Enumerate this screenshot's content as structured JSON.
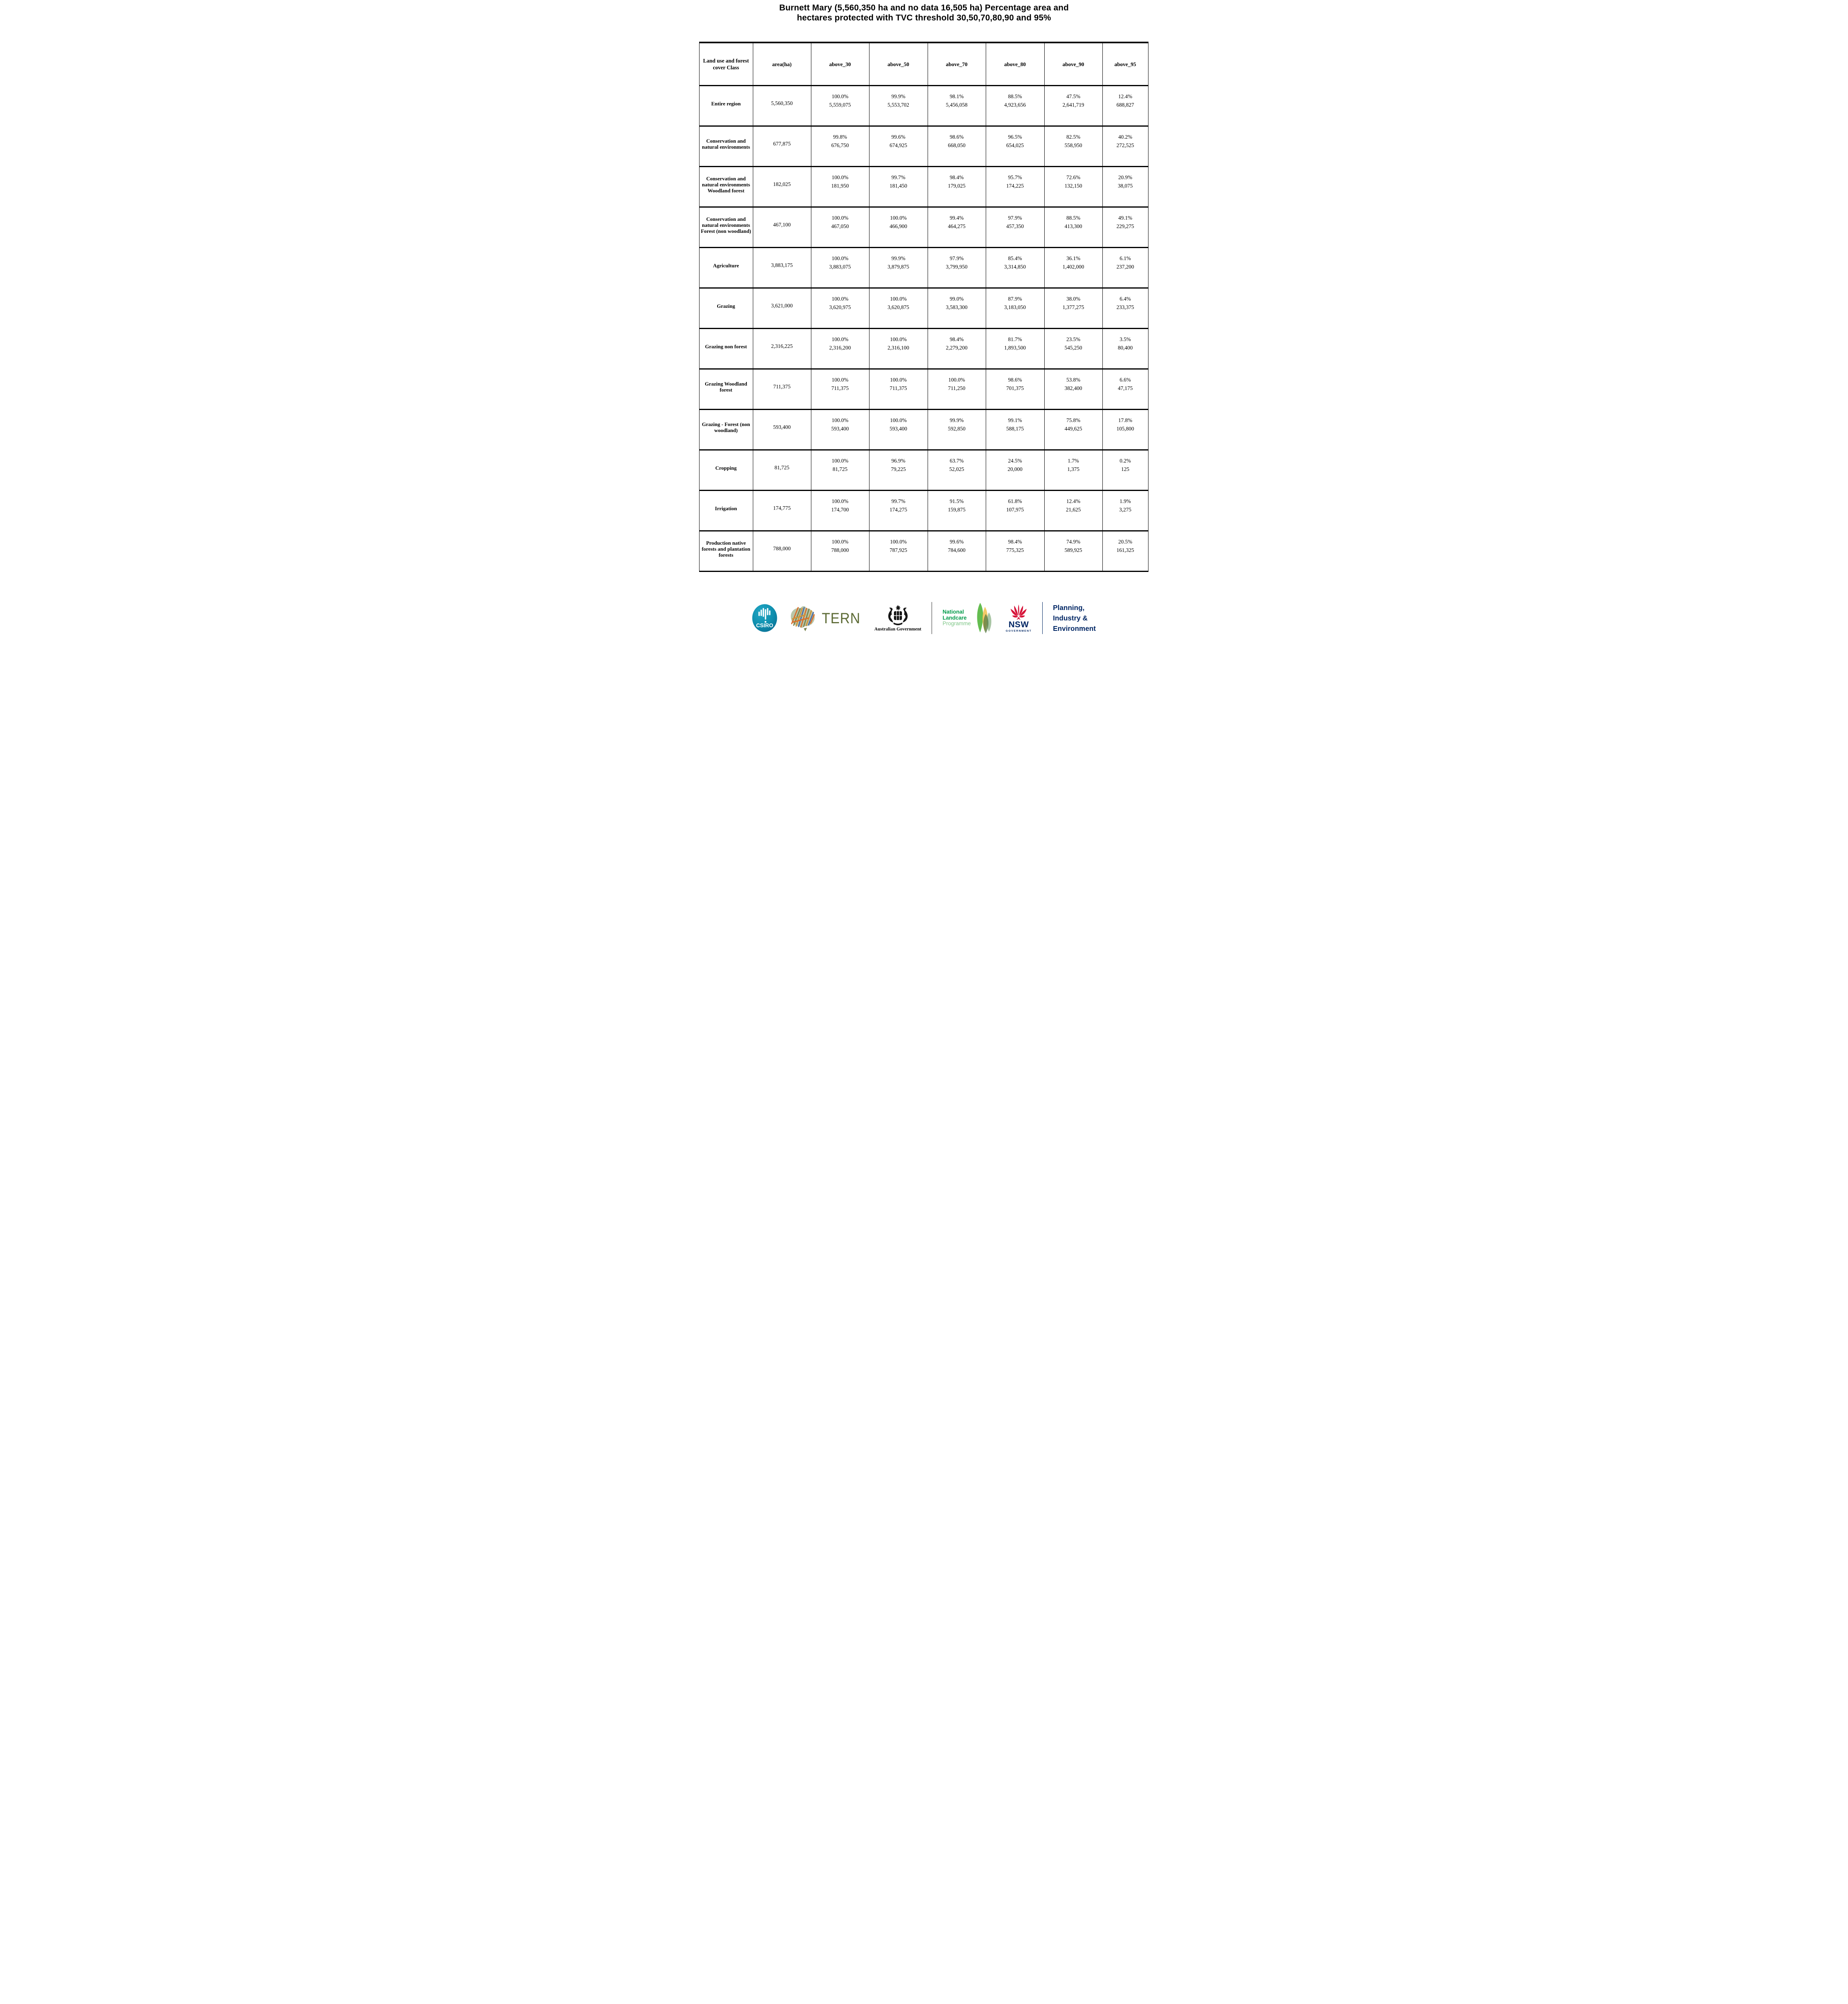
{
  "title": {
    "line1": "Burnett Mary (5,560,350 ha and no data 16,505 ha) Percentage area and",
    "line2": "hectares protected with TVC threshold 30,50,70,80,90 and 95%"
  },
  "table": {
    "columns": [
      "Land use and forest cover Class",
      "area(ha)",
      "above_30",
      "above_50",
      "above_70",
      "above_80",
      "above_90",
      "above_95"
    ],
    "rows": [
      {
        "label": "Entire region",
        "area": "5,560,350",
        "cells": [
          {
            "pct": "100.0%",
            "ha": "5,559,075"
          },
          {
            "pct": "99.9%",
            "ha": "5,553,702"
          },
          {
            "pct": "98.1%",
            "ha": "5,456,058"
          },
          {
            "pct": "88.5%",
            "ha": "4,923,656"
          },
          {
            "pct": "47.5%",
            "ha": "2,641,719"
          },
          {
            "pct": "12.4%",
            "ha": "688,827"
          }
        ]
      },
      {
        "label": "Conservation and natural environments",
        "area": "677,875",
        "cells": [
          {
            "pct": "99.8%",
            "ha": "676,750"
          },
          {
            "pct": "99.6%",
            "ha": "674,925"
          },
          {
            "pct": "98.6%",
            "ha": "668,050"
          },
          {
            "pct": "96.5%",
            "ha": "654,025"
          },
          {
            "pct": "82.5%",
            "ha": "558,950"
          },
          {
            "pct": "40.2%",
            "ha": "272,525"
          }
        ]
      },
      {
        "label": "Conservation and natural environments Woodland forest",
        "area": "182,025",
        "cells": [
          {
            "pct": "100.0%",
            "ha": "181,950"
          },
          {
            "pct": "99.7%",
            "ha": "181,450"
          },
          {
            "pct": "98.4%",
            "ha": "179,025"
          },
          {
            "pct": "95.7%",
            "ha": "174,225"
          },
          {
            "pct": "72.6%",
            "ha": "132,150"
          },
          {
            "pct": "20.9%",
            "ha": "38,075"
          }
        ]
      },
      {
        "label": "Conservation and natural environments Forest (non woodland)",
        "area": "467,100",
        "cells": [
          {
            "pct": "100.0%",
            "ha": "467,050"
          },
          {
            "pct": "100.0%",
            "ha": "466,900"
          },
          {
            "pct": "99.4%",
            "ha": "464,275"
          },
          {
            "pct": "97.9%",
            "ha": "457,350"
          },
          {
            "pct": "88.5%",
            "ha": "413,300"
          },
          {
            "pct": "49.1%",
            "ha": "229,275"
          }
        ]
      },
      {
        "label": "Agriculture",
        "area": "3,883,175",
        "cells": [
          {
            "pct": "100.0%",
            "ha": "3,883,075"
          },
          {
            "pct": "99.9%",
            "ha": "3,879,875"
          },
          {
            "pct": "97.9%",
            "ha": "3,799,950"
          },
          {
            "pct": "85.4%",
            "ha": "3,314,850"
          },
          {
            "pct": "36.1%",
            "ha": "1,402,000"
          },
          {
            "pct": "6.1%",
            "ha": "237,200"
          }
        ]
      },
      {
        "label": "Grazing",
        "area": "3,621,000",
        "cells": [
          {
            "pct": "100.0%",
            "ha": "3,620,975"
          },
          {
            "pct": "100.0%",
            "ha": "3,620,875"
          },
          {
            "pct": "99.0%",
            "ha": "3,583,300"
          },
          {
            "pct": "87.9%",
            "ha": "3,183,050"
          },
          {
            "pct": "38.0%",
            "ha": "1,377,275"
          },
          {
            "pct": "6.4%",
            "ha": "233,375"
          }
        ]
      },
      {
        "label": "Grazing non forest",
        "area": "2,316,225",
        "cells": [
          {
            "pct": "100.0%",
            "ha": "2,316,200"
          },
          {
            "pct": "100.0%",
            "ha": "2,316,100"
          },
          {
            "pct": "98.4%",
            "ha": "2,279,200"
          },
          {
            "pct": "81.7%",
            "ha": "1,893,500"
          },
          {
            "pct": "23.5%",
            "ha": "545,250"
          },
          {
            "pct": "3.5%",
            "ha": "80,400"
          }
        ]
      },
      {
        "label": "Grazing Woodland forest",
        "area": "711,375",
        "cells": [
          {
            "pct": "100.0%",
            "ha": "711,375"
          },
          {
            "pct": "100.0%",
            "ha": "711,375"
          },
          {
            "pct": "100.0%",
            "ha": "711,250"
          },
          {
            "pct": "98.6%",
            "ha": "701,375"
          },
          {
            "pct": "53.8%",
            "ha": "382,400"
          },
          {
            "pct": "6.6%",
            "ha": "47,175"
          }
        ]
      },
      {
        "label": "Grazing - Forest (non woodland)",
        "area": "593,400",
        "cells": [
          {
            "pct": "100.0%",
            "ha": "593,400"
          },
          {
            "pct": "100.0%",
            "ha": "593,400"
          },
          {
            "pct": "99.9%",
            "ha": "592,850"
          },
          {
            "pct": "99.1%",
            "ha": "588,175"
          },
          {
            "pct": "75.8%",
            "ha": "449,625"
          },
          {
            "pct": "17.8%",
            "ha": "105,800"
          }
        ]
      },
      {
        "label": "Cropping",
        "area": "81,725",
        "cells": [
          {
            "pct": "100.0%",
            "ha": "81,725"
          },
          {
            "pct": "96.9%",
            "ha": "79,225"
          },
          {
            "pct": "63.7%",
            "ha": "52,025"
          },
          {
            "pct": "24.5%",
            "ha": "20,000"
          },
          {
            "pct": "1.7%",
            "ha": "1,375"
          },
          {
            "pct": "0.2%",
            "ha": "125"
          }
        ]
      },
      {
        "label": "Irrigation",
        "area": "174,775",
        "cells": [
          {
            "pct": "100.0%",
            "ha": "174,700"
          },
          {
            "pct": "99.7%",
            "ha": "174,275"
          },
          {
            "pct": "91.5%",
            "ha": "159,875"
          },
          {
            "pct": "61.8%",
            "ha": "107,975"
          },
          {
            "pct": "12.4%",
            "ha": "21,625"
          },
          {
            "pct": "1.9%",
            "ha": "3,275"
          }
        ]
      },
      {
        "label": "Production native forests and plantation forests",
        "area": "788,000",
        "cells": [
          {
            "pct": "100.0%",
            "ha": "788,000"
          },
          {
            "pct": "100.0%",
            "ha": "787,925"
          },
          {
            "pct": "99.6%",
            "ha": "784,600"
          },
          {
            "pct": "98.4%",
            "ha": "775,325"
          },
          {
            "pct": "74.9%",
            "ha": "589,925"
          },
          {
            "pct": "20.5%",
            "ha": "161,325"
          }
        ]
      }
    ]
  },
  "footer": {
    "csiro": {
      "text": "CSIRO",
      "teal": "#0f8fae"
    },
    "tern": {
      "text": "TERN",
      "olive": "#5d6b35"
    },
    "aus_gov": {
      "text": "Australian Government"
    },
    "landcare": {
      "line1": "National",
      "line2": "Landcare",
      "line3": "Programme",
      "green": "#009a49",
      "light_green": "#7fc688"
    },
    "nsw": {
      "text": "NSW",
      "subtext": "GOVERNMENT",
      "red": "#d7153a",
      "navy": "#002664"
    },
    "planning": {
      "line1": "Planning,",
      "line2": "Industry &",
      "line3": "Environment",
      "navy": "#002664"
    }
  }
}
